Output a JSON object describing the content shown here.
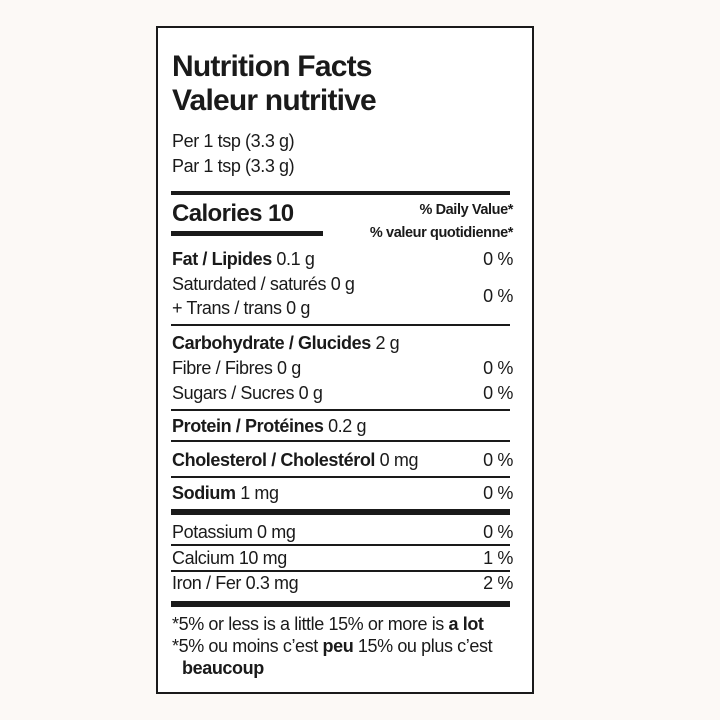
{
  "header": {
    "title_en": "Nutrition Facts",
    "title_fr": "Valeur nutritive",
    "serving_en": "Per 1 tsp (3.3 g)",
    "serving_fr": "Par 1 tsp (3.3 g)"
  },
  "calories": {
    "label": "Calories",
    "value": "10",
    "dv_en": "% Daily Value*",
    "dv_fr": "% valeur quotidienne*"
  },
  "nutrients": {
    "fat": {
      "label": "Fat / Lipides",
      "amount": "0.1 g",
      "dv": "0 %"
    },
    "saturated": {
      "label": "Saturdated / saturés 0 g"
    },
    "trans": {
      "label": "+ Trans / trans 0 g",
      "dv": "0 %"
    },
    "carb": {
      "label": "Carbohydrate / Glucides",
      "amount": "2 g"
    },
    "fibre": {
      "label": "Fibre / Fibres 0 g",
      "dv": "0 %"
    },
    "sugars": {
      "label": "Sugars / Sucres 0 g",
      "dv": "0 %"
    },
    "protein": {
      "label": "Protein / Protéines",
      "amount": "0.2 g"
    },
    "cholesterol": {
      "label": "Cholesterol / Cholestérol",
      "amount": "0 mg",
      "dv": "0 %"
    },
    "sodium": {
      "label": "Sodium",
      "amount": "1 mg",
      "dv": "0 %"
    },
    "potassium": {
      "label": "Potassium 0 mg",
      "dv": "0 %"
    },
    "calcium": {
      "label": "Calcium 10 mg",
      "dv": "1 %"
    },
    "iron": {
      "label": "Iron / Fer 0.3 mg",
      "dv": "2 %"
    }
  },
  "footnote": {
    "en_pre": "*5% or less is a little 15% or more is ",
    "en_bold": "a lot",
    "fr_pre": "*5% ou moins c’est ",
    "fr_bold1": "peu",
    "fr_mid": " 15% ou plus c’est",
    "fr_bold2": "beaucoup"
  }
}
